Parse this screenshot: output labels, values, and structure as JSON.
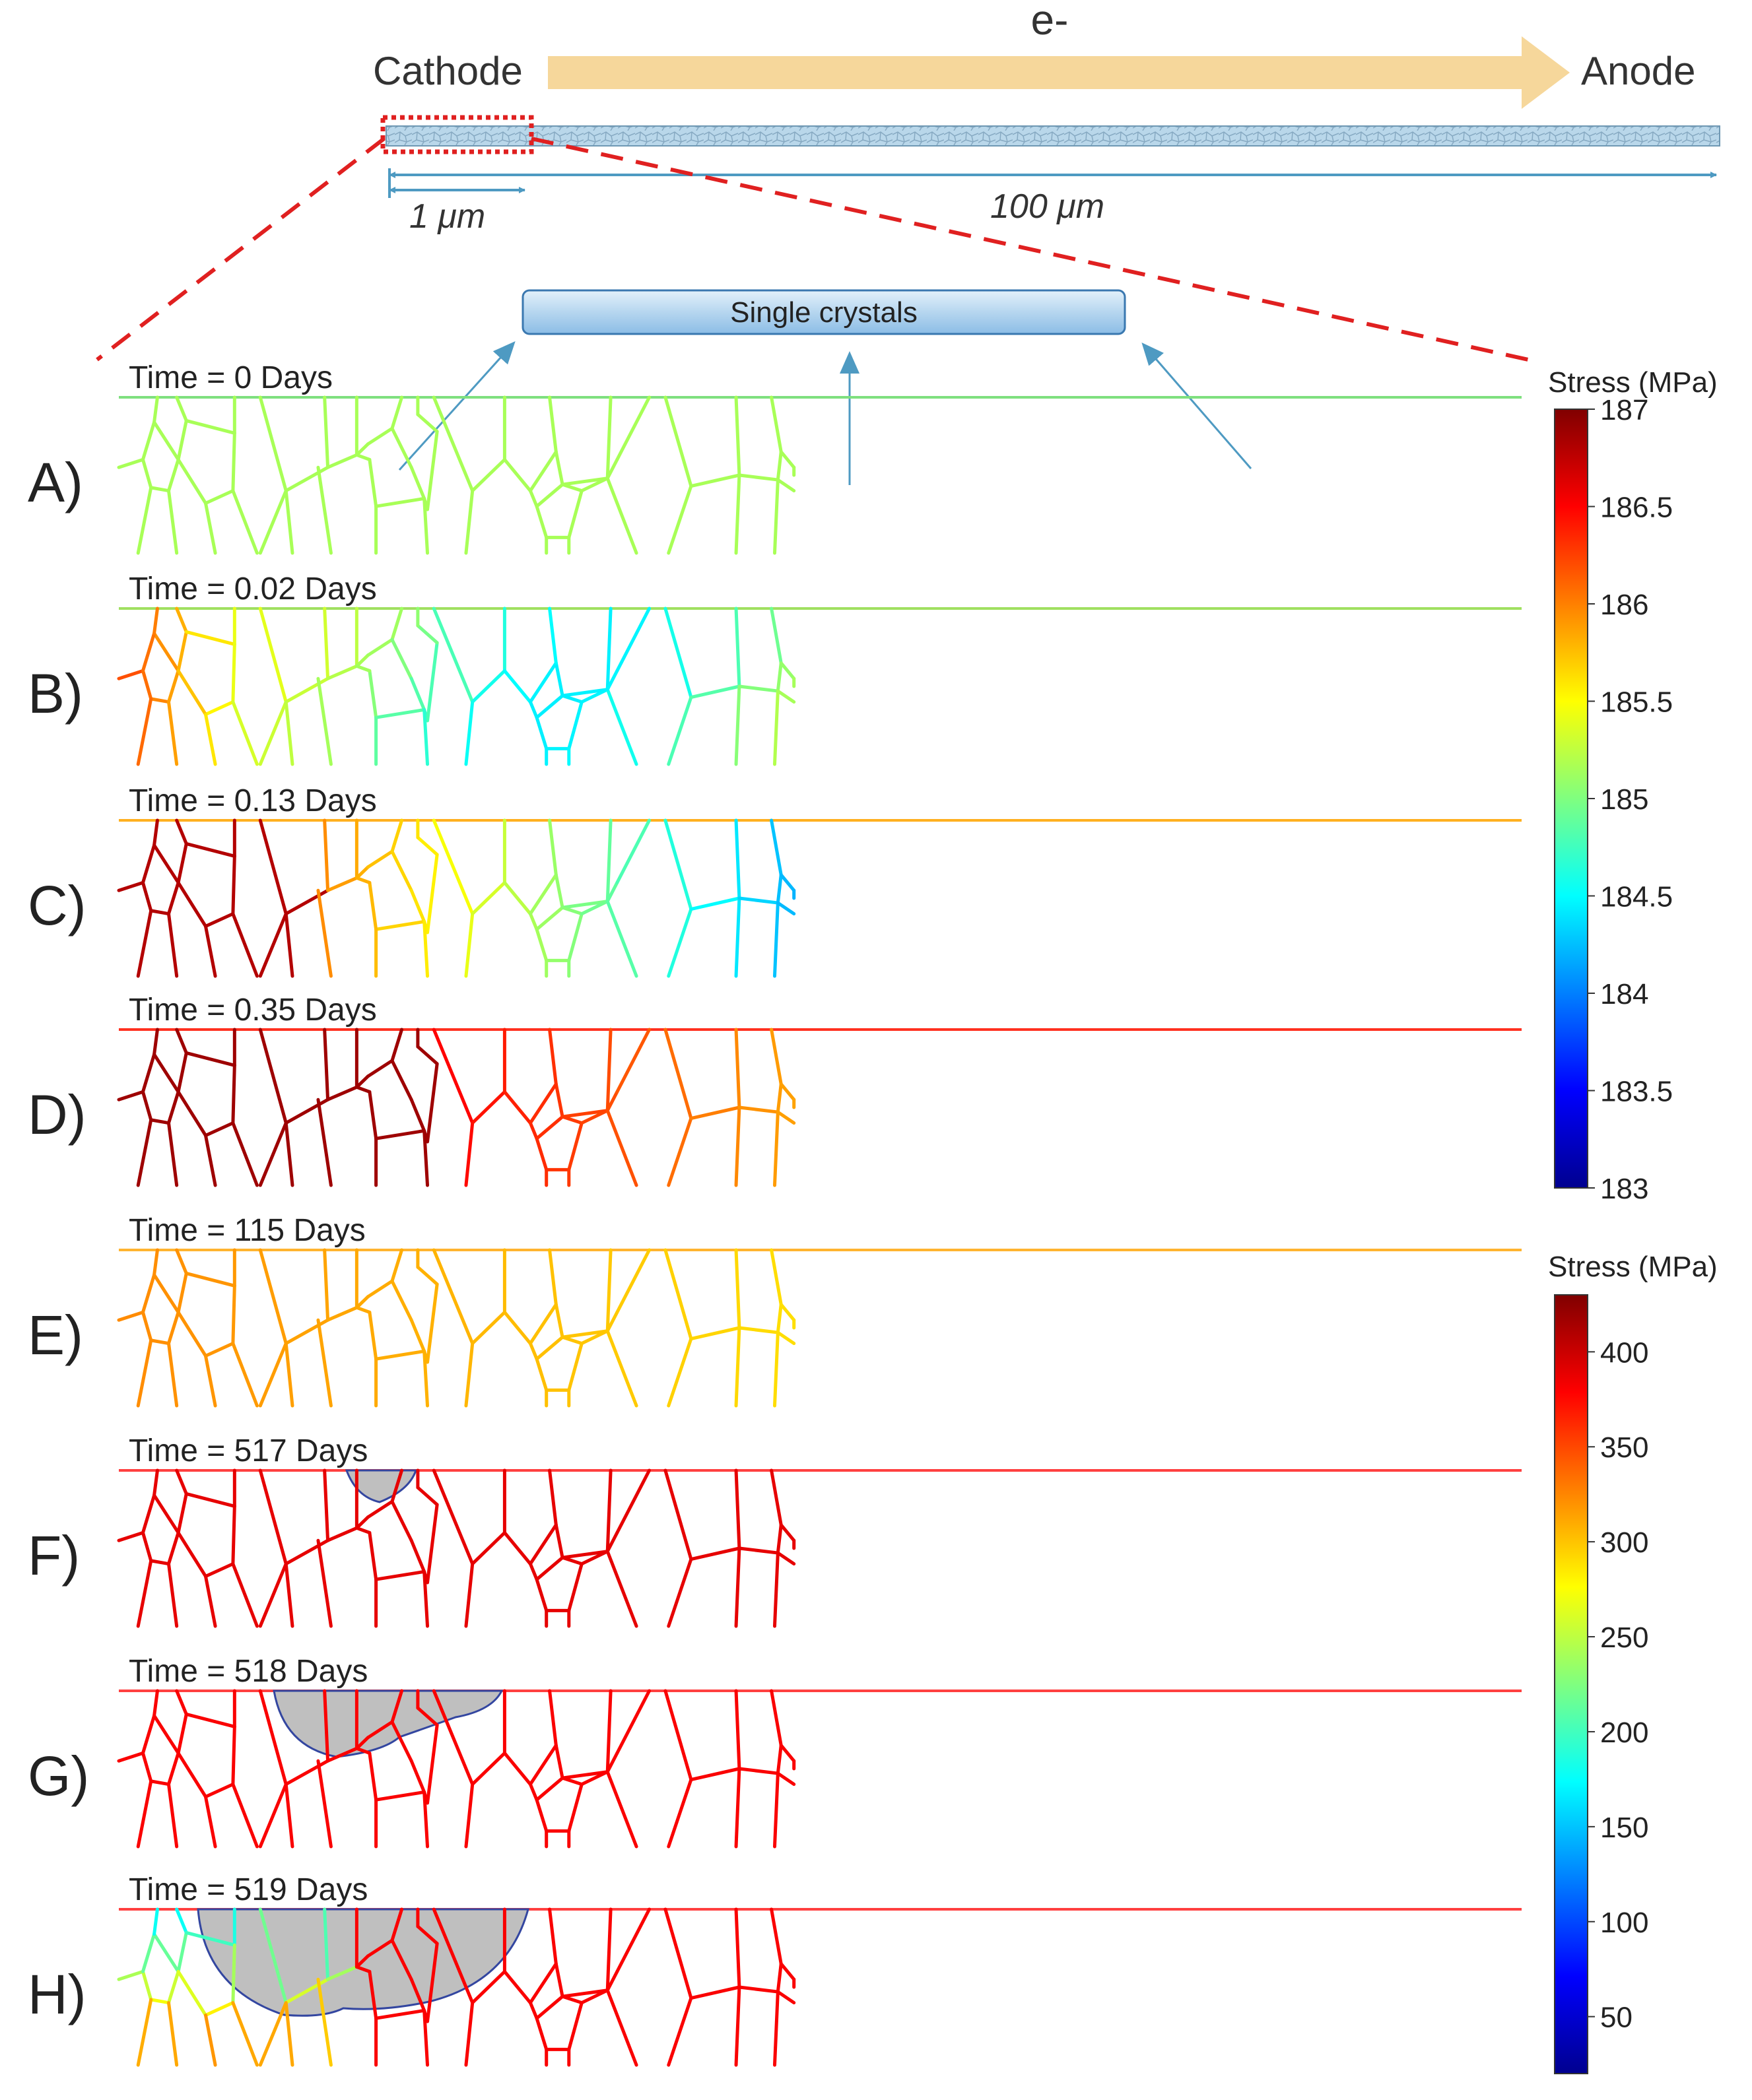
{
  "header": {
    "electron_label": "e-",
    "cathode_label": "Cathode",
    "anode_label": "Anode",
    "scale_small": "1 μm",
    "scale_large": "100 μm",
    "single_crystals_label": "Single crystals"
  },
  "panels": [
    {
      "letter": "A)",
      "time_label": "Time = 0 Days"
    },
    {
      "letter": "B)",
      "time_label": "Time = 0.02 Days"
    },
    {
      "letter": "C)",
      "time_label": "Time = 0.13 Days"
    },
    {
      "letter": "D)",
      "time_label": "Time = 0.35 Days"
    },
    {
      "letter": "E)",
      "time_label": "Time = 115 Days"
    },
    {
      "letter": "F)",
      "time_label": "Time = 517 Days"
    },
    {
      "letter": "G)",
      "time_label": "Time = 518 Days"
    },
    {
      "letter": "H)",
      "time_label": "Time = 519 Days"
    }
  ],
  "colorbar_top": {
    "title": "Stress (MPa)",
    "min": 183,
    "max": 187,
    "ticks": [
      "187",
      "186.5",
      "186",
      "185.5",
      "185",
      "184.5",
      "184",
      "183.5",
      "183"
    ]
  },
  "colorbar_bottom": {
    "title": "Stress (MPa)",
    "min": 20,
    "max": 430,
    "ticks": [
      "400",
      "350",
      "300",
      "250",
      "200",
      "150",
      "100",
      "50"
    ]
  },
  "colors": {
    "arrow": "#f6d79b",
    "film": "#b9d7ea",
    "scale_arrow": "#4e9ac2",
    "dashed_red": "#e02020",
    "void": "#bfbfbf",
    "void_edge": "#3346a0"
  }
}
